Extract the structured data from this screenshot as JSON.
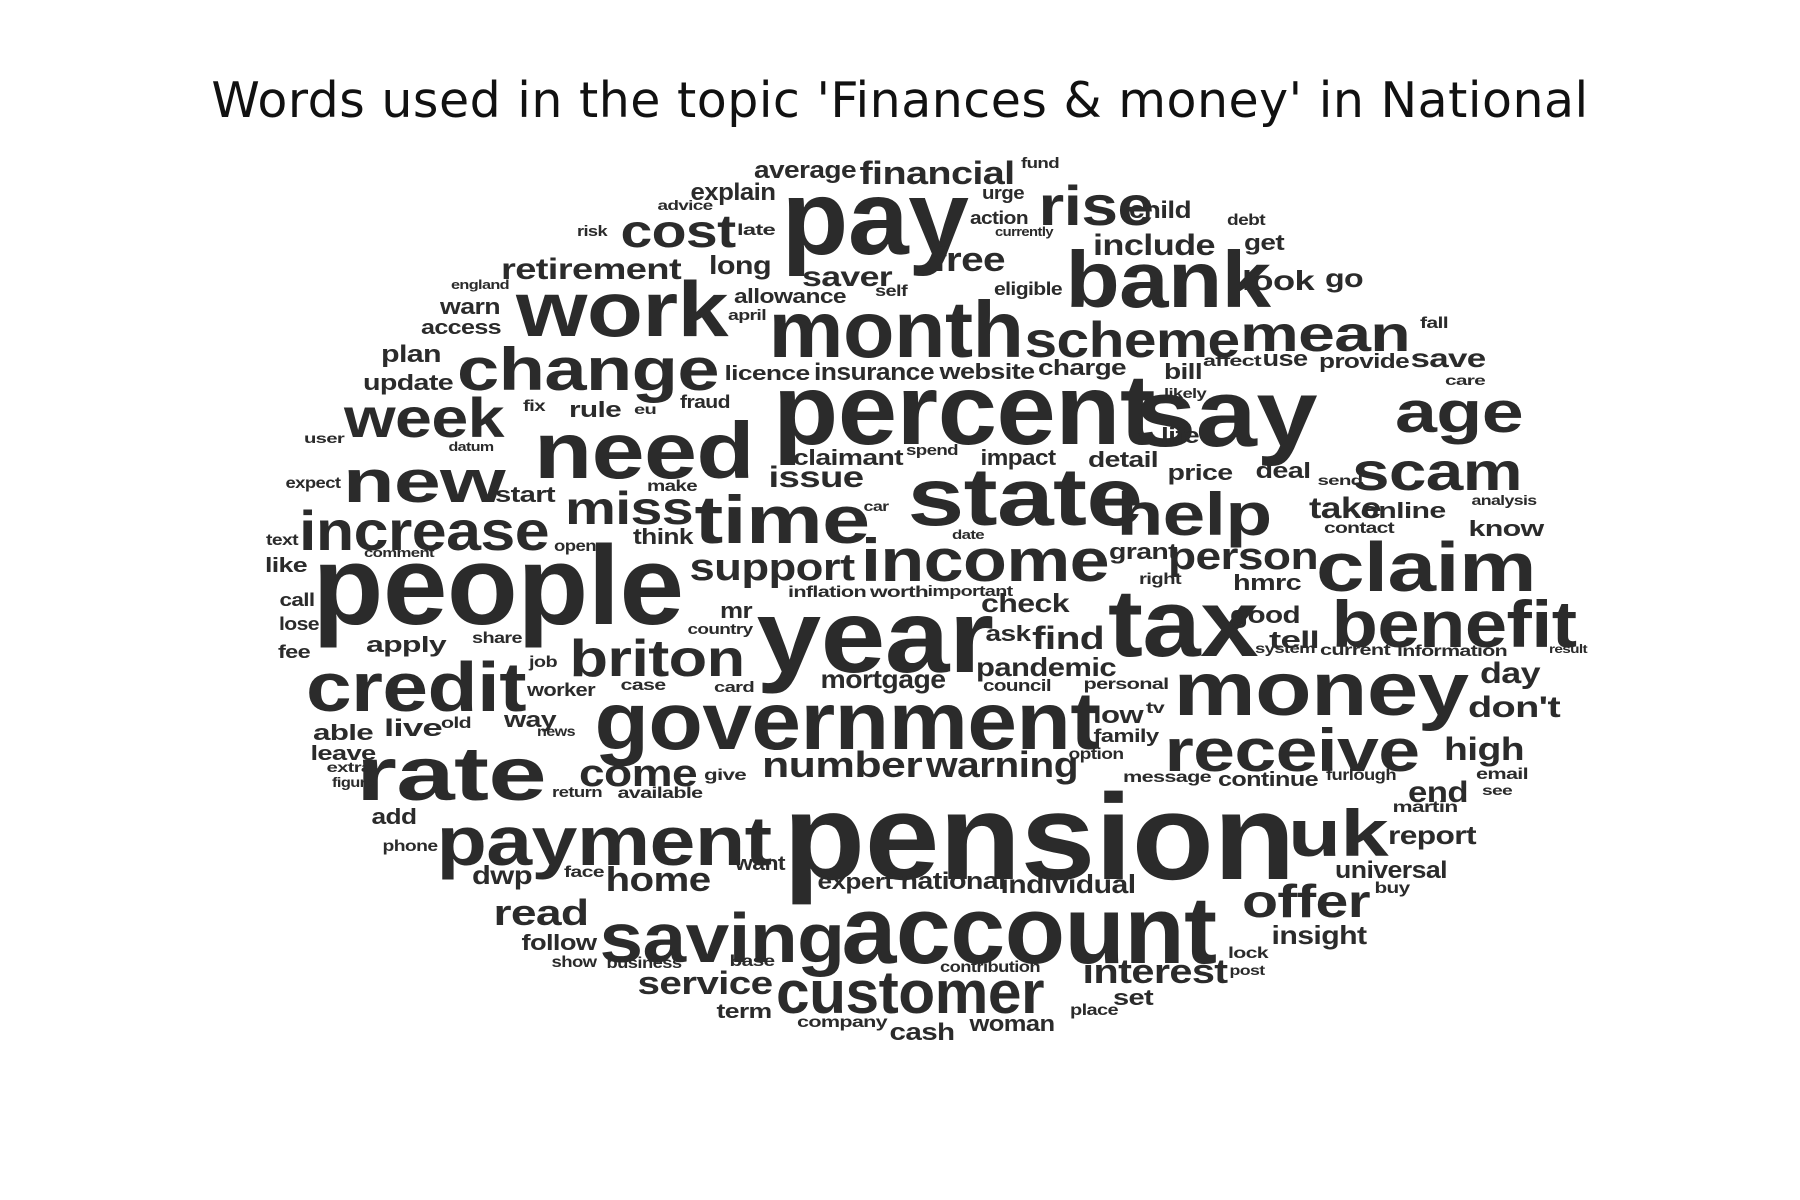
{
  "title": "Words used in the topic 'Finances & money' in National",
  "color": "#2b2b2b",
  "words": [
    "pension",
    "pay",
    "year",
    "tax",
    "people",
    "percent",
    "say",
    "account",
    "month",
    "bank",
    "work",
    "government",
    "state",
    "need",
    "saving",
    "payment",
    "money",
    "rate",
    "credit",
    "change",
    "new",
    "help",
    "receive",
    "time",
    "claim",
    "benefit",
    "income",
    "customer",
    "increase",
    "rise",
    "uk",
    "scheme",
    "mean",
    "age",
    "week",
    "scam",
    "miss",
    "cost",
    "briton",
    "offer",
    "number",
    "warning",
    "support",
    "come",
    "financial",
    "person",
    "interest",
    "retirement",
    "read",
    "home",
    "service",
    "insight",
    "high",
    "issue",
    "end",
    "report",
    "include",
    "free",
    "check",
    "find",
    "take",
    "saver",
    "average",
    "long",
    "pandemic",
    "mortgage",
    "day",
    "don't",
    "dwp",
    "child",
    "universal",
    "expert",
    "national",
    "individual",
    "explain",
    "plan",
    "update",
    "rule",
    "life",
    "price",
    "deal",
    "detail",
    "impact",
    "claimant",
    "charge",
    "insurance",
    "website",
    "licence",
    "allowance",
    "online",
    "know",
    "good",
    "tell",
    "apply",
    "able",
    "live",
    "way",
    "warn",
    "access",
    "follow",
    "show",
    "term",
    "cash",
    "woman",
    "company",
    "business",
    "contribution",
    "base",
    "set",
    "add",
    "phone",
    "leave",
    "figure",
    "extra",
    "old",
    "worker",
    "job",
    "like",
    "call",
    "lose",
    "fee",
    "text",
    "comment",
    "expect",
    "user",
    "datum",
    "start",
    "open",
    "think",
    "make",
    "car",
    "date",
    "grant",
    "right",
    "hmrc",
    "inflation",
    "worth",
    "important",
    "ask",
    "mr",
    "country",
    "share",
    "case",
    "card",
    "council",
    "personal",
    "low",
    "tv",
    "family",
    "option",
    "message",
    "continue",
    "furlough",
    "email",
    "see",
    "martin",
    "lock",
    "post",
    "buy",
    "place",
    "face",
    "want",
    "give",
    "available",
    "return",
    "news",
    "bill",
    "affect",
    "use",
    "provide",
    "save",
    "care",
    "likely",
    "send",
    "analysis",
    "contact",
    "information",
    "current",
    "system",
    "result",
    "fraud",
    "eu",
    "fix",
    "spend",
    "april",
    "self",
    "eligible",
    "england",
    "risk",
    "late",
    "currently",
    "action",
    "urge",
    "advice",
    "fund",
    "debt",
    "get",
    "go",
    "fall",
    "look"
  ]
}
